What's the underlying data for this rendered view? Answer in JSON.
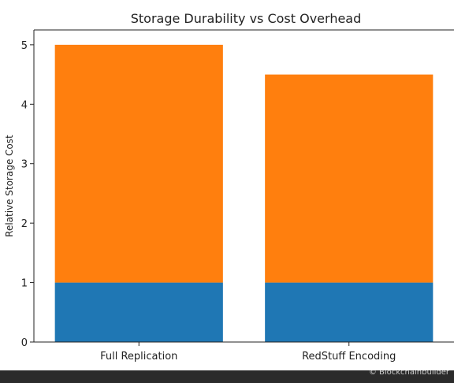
{
  "chart_data": {
    "type": "bar",
    "stacked": true,
    "title": "Storage Durability vs Cost Overhead",
    "xlabel": "",
    "ylabel": "Relative Storage Cost",
    "categories": [
      "Full Replication",
      "RedStuff Encoding"
    ],
    "series": [
      {
        "values": [
          1,
          1
        ],
        "color": "#1f77b4"
      },
      {
        "values": [
          4,
          3.5
        ],
        "color": "#ff7f0e"
      }
    ],
    "ylim": [
      0,
      5.25
    ],
    "yticks": [
      0,
      1,
      2,
      3,
      4,
      5
    ],
    "grid": false,
    "legend": "none"
  },
  "watermark": "© Blockchainbuilder"
}
